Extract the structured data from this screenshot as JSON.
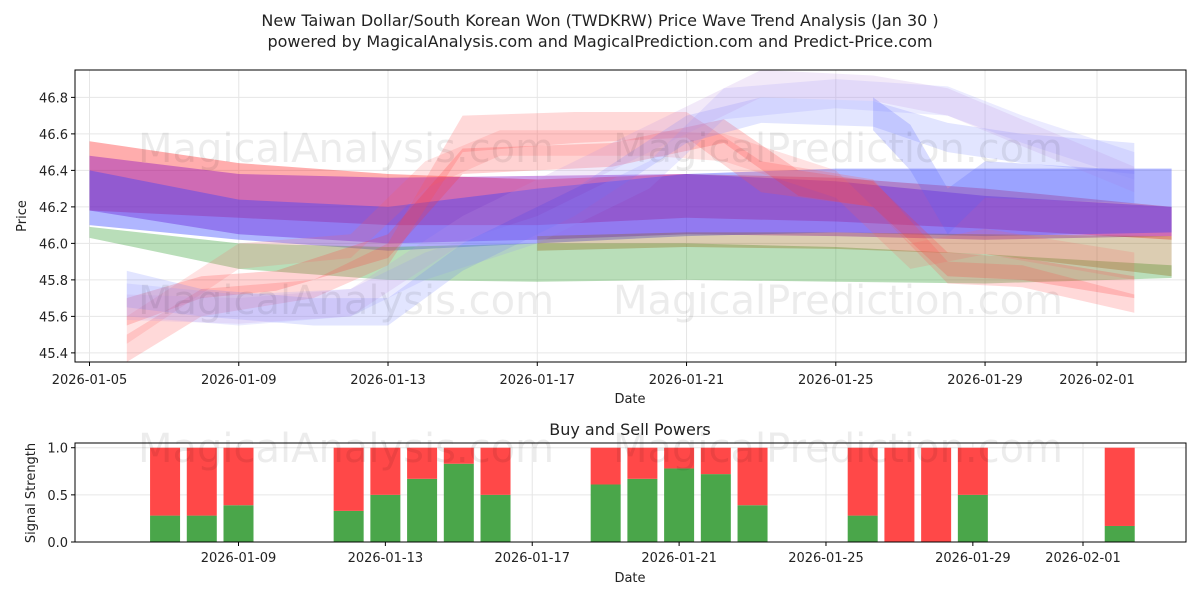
{
  "title": {
    "line1": "New Taiwan Dollar/South Korean Won (TWDKRW) Price Wave Trend Analysis (Jan 30 )",
    "line2": "powered by MagicalAnalysis.com and MagicalPrediction.com and Predict-Price.com"
  },
  "watermarks": {
    "left": "MagicalAnalysis.com",
    "right": "MagicalPrediction.com"
  },
  "chart_data": [
    {
      "type": "area",
      "title": "",
      "xlabel": "Date",
      "ylabel": "Price",
      "xlim": [
        "2026-01-05",
        "2026-02-03"
      ],
      "ylim": [
        45.35,
        46.95
      ],
      "yticks": [
        45.4,
        45.6,
        45.8,
        46.0,
        46.2,
        46.4,
        46.6,
        46.8
      ],
      "ytick_labels": [
        "45.4",
        "45.6",
        "45.8",
        "46.0",
        "46.2",
        "46.4",
        "46.6",
        "46.8"
      ],
      "xticks": [
        "2026-01-05",
        "2026-01-09",
        "2026-01-13",
        "2026-01-17",
        "2026-01-21",
        "2026-01-25",
        "2026-01-29",
        "2026-02-01"
      ],
      "grid": true,
      "bands": [
        {
          "name": "red-upper",
          "color": "#ff0000",
          "opacity": 0.32,
          "x": [
            "2026-01-05",
            "2026-01-09",
            "2026-01-13",
            "2026-01-17",
            "2026-01-21",
            "2026-01-25",
            "2026-01-29",
            "2026-02-03"
          ],
          "upper": [
            46.56,
            46.44,
            46.38,
            46.35,
            46.38,
            46.36,
            46.3,
            46.2
          ],
          "lower": [
            46.18,
            46.14,
            46.1,
            46.1,
            46.14,
            46.12,
            46.08,
            46.02
          ]
        },
        {
          "name": "purple-main",
          "color": "#8000c0",
          "opacity": 0.38,
          "x": [
            "2026-01-05",
            "2026-01-09",
            "2026-01-13",
            "2026-01-17",
            "2026-01-21",
            "2026-01-25",
            "2026-01-29",
            "2026-02-03"
          ],
          "upper": [
            46.48,
            46.38,
            46.36,
            46.37,
            46.38,
            46.34,
            46.26,
            46.2
          ],
          "lower": [
            46.18,
            46.05,
            46.0,
            46.02,
            46.05,
            46.04,
            46.02,
            46.04
          ]
        },
        {
          "name": "blue-main",
          "color": "#3040ff",
          "opacity": 0.38,
          "x": [
            "2026-01-05",
            "2026-01-09",
            "2026-01-13",
            "2026-01-17",
            "2026-01-21",
            "2026-01-25",
            "2026-01-29",
            "2026-02-03"
          ],
          "upper": [
            46.4,
            46.24,
            46.2,
            46.3,
            46.38,
            46.41,
            46.41,
            46.41
          ],
          "lower": [
            46.1,
            46.02,
            45.96,
            46.0,
            46.04,
            46.06,
            46.04,
            46.06
          ]
        },
        {
          "name": "green-lower",
          "color": "#2a9a2a",
          "opacity": 0.33,
          "x": [
            "2026-01-05",
            "2026-01-09",
            "2026-01-13",
            "2026-01-17",
            "2026-01-21",
            "2026-01-25",
            "2026-01-29",
            "2026-02-03"
          ],
          "upper": [
            46.09,
            46.0,
            45.98,
            46.0,
            46.0,
            45.98,
            45.94,
            45.88
          ],
          "lower": [
            46.03,
            45.86,
            45.8,
            45.79,
            45.8,
            45.79,
            45.78,
            45.81
          ]
        },
        {
          "name": "brown-lower",
          "color": "#8b5a00",
          "opacity": 0.3,
          "x": [
            "2026-01-17",
            "2026-01-21",
            "2026-01-25",
            "2026-01-29",
            "2026-02-03"
          ],
          "upper": [
            46.04,
            46.06,
            46.06,
            46.05,
            46.04
          ],
          "lower": [
            45.96,
            45.98,
            45.97,
            45.94,
            45.82
          ]
        },
        {
          "name": "pink-wave-1",
          "color": "#ff5050",
          "opacity": 0.22,
          "x": [
            "2026-01-06",
            "2026-01-08",
            "2026-01-11",
            "2026-01-13",
            "2026-01-15",
            "2026-01-18",
            "2026-01-21",
            "2026-01-23",
            "2026-01-26",
            "2026-01-28",
            "2026-01-30",
            "2026-02-02"
          ],
          "upper": [
            45.5,
            45.75,
            45.8,
            46.0,
            46.7,
            46.72,
            46.72,
            46.45,
            46.35,
            45.9,
            45.88,
            45.72
          ],
          "lower": [
            45.35,
            45.6,
            45.7,
            45.88,
            46.5,
            46.55,
            46.58,
            46.28,
            46.2,
            45.78,
            45.76,
            45.62
          ]
        },
        {
          "name": "pink-wave-2",
          "color": "#ff3030",
          "opacity": 0.22,
          "x": [
            "2026-01-06",
            "2026-01-08",
            "2026-01-10",
            "2026-01-13",
            "2026-01-15",
            "2026-01-19",
            "2026-01-22",
            "2026-01-24",
            "2026-01-26",
            "2026-01-28",
            "2026-01-30",
            "2026-02-02"
          ],
          "upper": [
            45.7,
            45.82,
            45.85,
            46.05,
            46.52,
            46.55,
            46.68,
            46.4,
            46.34,
            45.95,
            45.92,
            45.82
          ],
          "lower": [
            45.55,
            45.7,
            45.74,
            45.92,
            46.38,
            46.42,
            46.55,
            46.26,
            46.2,
            45.82,
            45.8,
            45.7
          ]
        },
        {
          "name": "pink-wave-3",
          "color": "#ff6060",
          "opacity": 0.18,
          "x": [
            "2026-01-06",
            "2026-01-09",
            "2026-01-12",
            "2026-01-14",
            "2026-01-16",
            "2026-01-20",
            "2026-01-22",
            "2026-01-25",
            "2026-01-27",
            "2026-01-29",
            "2026-02-02"
          ],
          "upper": [
            45.6,
            46.0,
            46.05,
            46.45,
            46.62,
            46.62,
            46.6,
            46.4,
            46.0,
            46.08,
            45.95
          ],
          "lower": [
            45.45,
            45.86,
            45.92,
            46.3,
            46.48,
            46.48,
            46.45,
            46.25,
            45.86,
            45.94,
            45.8
          ]
        },
        {
          "name": "lavender-wave-1",
          "color": "#6070ff",
          "opacity": 0.18,
          "x": [
            "2026-01-06",
            "2026-01-08",
            "2026-01-11",
            "2026-01-13",
            "2026-01-15",
            "2026-01-18",
            "2026-01-21",
            "2026-01-23",
            "2026-01-26",
            "2026-01-28",
            "2026-01-30",
            "2026-02-02"
          ],
          "upper": [
            45.85,
            45.75,
            45.7,
            45.7,
            46.0,
            46.3,
            46.7,
            46.8,
            46.78,
            46.66,
            46.6,
            46.55
          ],
          "lower": [
            45.65,
            45.6,
            45.55,
            45.55,
            45.85,
            46.15,
            46.55,
            46.66,
            46.64,
            46.5,
            46.44,
            46.38
          ]
        },
        {
          "name": "lavender-wave-2",
          "color": "#9090ff",
          "opacity": 0.18,
          "x": [
            "2026-01-06",
            "2026-01-09",
            "2026-01-12",
            "2026-01-14",
            "2026-01-17",
            "2026-01-20",
            "2026-01-22",
            "2026-01-25",
            "2026-01-28",
            "2026-01-30",
            "2026-02-02"
          ],
          "upper": [
            45.78,
            45.72,
            45.75,
            45.95,
            46.15,
            46.45,
            46.85,
            46.9,
            46.86,
            46.7,
            46.5
          ],
          "lower": [
            45.6,
            45.55,
            45.6,
            45.8,
            46.0,
            46.3,
            46.68,
            46.74,
            46.7,
            46.55,
            46.35
          ]
        },
        {
          "name": "lavender-wave-3",
          "color": "#c090e0",
          "opacity": 0.2,
          "x": [
            "2026-01-06",
            "2026-01-09",
            "2026-01-12",
            "2026-01-15",
            "2026-01-18",
            "2026-01-21",
            "2026-01-23",
            "2026-01-26",
            "2026-01-28",
            "2026-02-02"
          ],
          "upper": [
            45.72,
            45.7,
            45.75,
            46.15,
            46.45,
            46.75,
            46.95,
            46.92,
            46.85,
            46.42
          ],
          "lower": [
            45.58,
            45.56,
            45.6,
            46.0,
            46.3,
            46.6,
            46.8,
            46.78,
            46.7,
            46.28
          ]
        },
        {
          "name": "blue-drop",
          "color": "#5060ff",
          "opacity": 0.22,
          "x": [
            "2026-01-26",
            "2026-01-27",
            "2026-01-28",
            "2026-01-29",
            "2026-02-02"
          ],
          "upper": [
            46.8,
            46.65,
            46.3,
            46.45,
            46.4
          ],
          "lower": [
            46.62,
            46.4,
            46.05,
            46.25,
            46.22
          ]
        }
      ]
    },
    {
      "type": "bar",
      "title": "Buy and Sell Powers",
      "xlabel": "Date",
      "ylabel": "Signal Strength",
      "ylim": [
        0,
        1.05
      ],
      "yticks": [
        0.0,
        0.5,
        1.0
      ],
      "ytick_labels": [
        "0.0",
        "0.5",
        "1.0"
      ],
      "xlim": [
        "2026-01-03",
        "2026-02-03"
      ],
      "xticks": [
        "2026-01-09",
        "2026-01-13",
        "2026-01-17",
        "2026-01-21",
        "2026-01-25",
        "2026-01-29",
        "2026-02-01"
      ],
      "grid": true,
      "categories": [
        "2026-01-07",
        "2026-01-08",
        "2026-01-09",
        "2026-01-12",
        "2026-01-13",
        "2026-01-14",
        "2026-01-15",
        "2026-01-16",
        "2026-01-19",
        "2026-01-20",
        "2026-01-21",
        "2026-01-22",
        "2026-01-23",
        "2026-01-26",
        "2026-01-27",
        "2026-01-28",
        "2026-01-29",
        "2026-02-02"
      ],
      "series": [
        {
          "name": "Buy",
          "color": "#4aa64a",
          "values": [
            0.28,
            0.28,
            0.39,
            0.33,
            0.5,
            0.67,
            0.83,
            0.5,
            0.61,
            0.67,
            0.78,
            0.72,
            0.39,
            0.28,
            0.0,
            0.0,
            0.5,
            0.17
          ]
        },
        {
          "name": "Sell",
          "color": "#ff4848",
          "values": [
            0.72,
            0.72,
            0.61,
            0.67,
            0.5,
            0.33,
            0.17,
            0.5,
            0.39,
            0.33,
            0.22,
            0.28,
            0.61,
            0.72,
            1.0,
            1.0,
            0.5,
            0.83
          ]
        }
      ]
    }
  ]
}
